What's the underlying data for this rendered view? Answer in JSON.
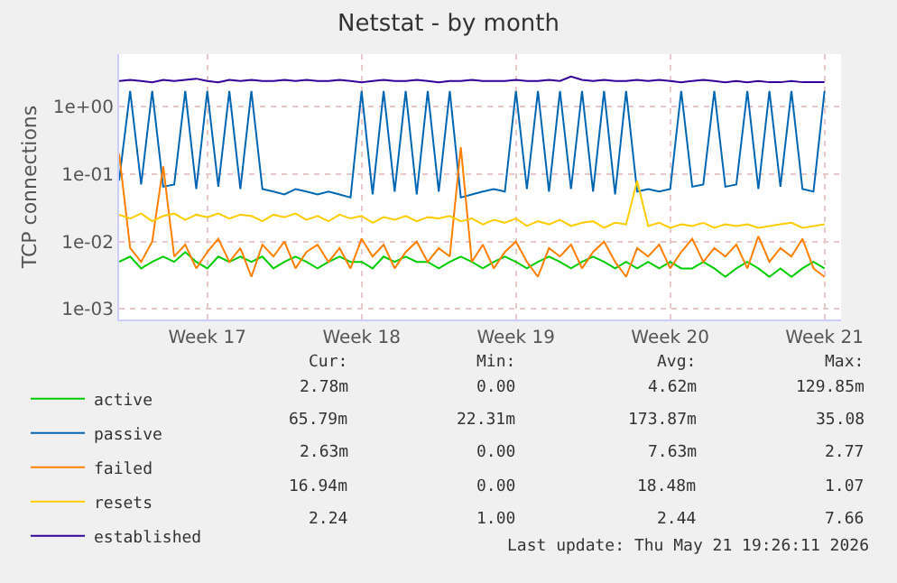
{
  "chart_data": {
    "type": "line",
    "title": "Netstat - by month",
    "ylabel": "TCP connections",
    "x": [
      "2026-04-19T12:00",
      "2026-04-20T00:00",
      "2026-04-20T12:00",
      "2026-04-21T00:00",
      "2026-04-21T12:00",
      "2026-04-22T00:00",
      "2026-04-22T12:00",
      "2026-04-23T00:00",
      "2026-04-23T12:00",
      "2026-04-24T00:00",
      "2026-04-24T12:00",
      "2026-04-25T00:00",
      "2026-04-25T12:00",
      "2026-04-26T00:00",
      "2026-04-26T12:00",
      "2026-04-27T00:00",
      "2026-04-27T12:00",
      "2026-04-28T00:00",
      "2026-04-28T12:00",
      "2026-04-29T00:00",
      "2026-04-29T12:00",
      "2026-04-30T00:00",
      "2026-04-30T12:00",
      "2026-05-01T00:00",
      "2026-05-01T12:00",
      "2026-05-02T00:00",
      "2026-05-02T12:00",
      "2026-05-03T00:00",
      "2026-05-03T12:00",
      "2026-05-04T00:00",
      "2026-05-04T12:00",
      "2026-05-05T00:00",
      "2026-05-05T12:00",
      "2026-05-06T00:00",
      "2026-05-06T12:00",
      "2026-05-07T00:00",
      "2026-05-07T12:00",
      "2026-05-08T00:00",
      "2026-05-08T12:00",
      "2026-05-09T00:00",
      "2026-05-09T12:00",
      "2026-05-10T00:00",
      "2026-05-10T12:00",
      "2026-05-11T00:00",
      "2026-05-11T12:00",
      "2026-05-12T00:00",
      "2026-05-12T12:00",
      "2026-05-13T00:00",
      "2026-05-13T12:00",
      "2026-05-14T00:00",
      "2026-05-14T12:00",
      "2026-05-15T00:00",
      "2026-05-15T12:00",
      "2026-05-16T00:00",
      "2026-05-16T12:00",
      "2026-05-17T00:00",
      "2026-05-17T12:00",
      "2026-05-18T00:00",
      "2026-05-18T12:00",
      "2026-05-19T00:00",
      "2026-05-19T12:00",
      "2026-05-20T00:00",
      "2026-05-20T12:00",
      "2026-05-21T00:00",
      "2026-05-21T12:00"
    ],
    "series": [
      {
        "name": "active",
        "color": "#00cc00",
        "values": [
          0.005,
          0.006,
          0.004,
          0.005,
          0.006,
          0.005,
          0.007,
          0.005,
          0.004,
          0.006,
          0.005,
          0.006,
          0.005,
          0.006,
          0.004,
          0.005,
          0.006,
          0.005,
          0.004,
          0.005,
          0.006,
          0.005,
          0.005,
          0.004,
          0.006,
          0.005,
          0.006,
          0.005,
          0.005,
          0.004,
          0.005,
          0.006,
          0.005,
          0.004,
          0.005,
          0.006,
          0.005,
          0.004,
          0.005,
          0.006,
          0.005,
          0.004,
          0.005,
          0.006,
          0.005,
          0.004,
          0.005,
          0.004,
          0.005,
          0.004,
          0.005,
          0.004,
          0.004,
          0.005,
          0.004,
          0.003,
          0.004,
          0.005,
          0.004,
          0.003,
          0.004,
          0.003,
          0.004,
          0.005,
          0.004
        ]
      },
      {
        "name": "passive",
        "color": "#0066b3",
        "values": [
          0.08,
          1.7,
          0.07,
          1.7,
          0.065,
          0.07,
          1.7,
          0.06,
          1.7,
          0.065,
          1.7,
          0.06,
          1.7,
          0.06,
          0.055,
          0.05,
          0.06,
          0.055,
          0.05,
          0.055,
          0.05,
          0.045,
          1.7,
          0.05,
          1.7,
          0.055,
          1.7,
          0.05,
          1.7,
          0.055,
          1.7,
          0.045,
          0.05,
          0.055,
          0.06,
          0.055,
          1.7,
          0.06,
          1.7,
          0.055,
          1.7,
          0.06,
          1.7,
          0.055,
          1.7,
          0.05,
          1.7,
          0.055,
          0.06,
          0.055,
          0.06,
          1.7,
          0.065,
          0.07,
          1.7,
          0.065,
          0.07,
          1.7,
          0.06,
          1.7,
          0.065,
          1.7,
          0.06,
          0.055,
          1.7
        ]
      },
      {
        "name": "failed",
        "color": "#ff8000",
        "values": [
          0.2,
          0.008,
          0.005,
          0.01,
          0.13,
          0.006,
          0.009,
          0.004,
          0.007,
          0.011,
          0.005,
          0.008,
          0.003,
          0.009,
          0.006,
          0.01,
          0.004,
          0.007,
          0.009,
          0.005,
          0.008,
          0.004,
          0.011,
          0.006,
          0.009,
          0.004,
          0.007,
          0.01,
          0.005,
          0.008,
          0.006,
          0.25,
          0.005,
          0.009,
          0.004,
          0.007,
          0.01,
          0.005,
          0.003,
          0.008,
          0.006,
          0.009,
          0.004,
          0.007,
          0.01,
          0.005,
          0.003,
          0.008,
          0.006,
          0.009,
          0.004,
          0.007,
          0.011,
          0.005,
          0.008,
          0.006,
          0.009,
          0.004,
          0.012,
          0.005,
          0.008,
          0.006,
          0.011,
          0.004,
          0.003
        ]
      },
      {
        "name": "resets",
        "color": "#ffcc00",
        "values": [
          0.025,
          0.022,
          0.026,
          0.02,
          0.024,
          0.026,
          0.021,
          0.025,
          0.023,
          0.026,
          0.022,
          0.025,
          0.024,
          0.02,
          0.025,
          0.023,
          0.026,
          0.021,
          0.024,
          0.02,
          0.025,
          0.022,
          0.024,
          0.019,
          0.023,
          0.021,
          0.024,
          0.02,
          0.023,
          0.022,
          0.024,
          0.02,
          0.022,
          0.018,
          0.021,
          0.019,
          0.022,
          0.017,
          0.02,
          0.018,
          0.021,
          0.017,
          0.019,
          0.02,
          0.016,
          0.019,
          0.018,
          0.08,
          0.017,
          0.019,
          0.016,
          0.018,
          0.017,
          0.019,
          0.016,
          0.018,
          0.017,
          0.018,
          0.016,
          0.017,
          0.018,
          0.019,
          0.016,
          0.017,
          0.018
        ]
      },
      {
        "name": "established",
        "color": "#330099",
        "values": [
          2.4,
          2.5,
          2.4,
          2.3,
          2.5,
          2.4,
          2.5,
          2.6,
          2.4,
          2.3,
          2.5,
          2.4,
          2.5,
          2.4,
          2.4,
          2.5,
          2.4,
          2.5,
          2.4,
          2.4,
          2.5,
          2.4,
          2.3,
          2.4,
          2.5,
          2.4,
          2.4,
          2.5,
          2.4,
          2.3,
          2.4,
          2.4,
          2.5,
          2.4,
          2.4,
          2.4,
          2.5,
          2.4,
          2.4,
          2.5,
          2.4,
          2.8,
          2.5,
          2.4,
          2.5,
          2.4,
          2.4,
          2.5,
          2.4,
          2.5,
          2.4,
          2.3,
          2.4,
          2.5,
          2.4,
          2.3,
          2.4,
          2.3,
          2.4,
          2.3,
          2.3,
          2.4,
          2.3,
          2.3,
          2.3
        ]
      }
    ],
    "xlim": [
      "2026-04-19T12:00",
      "2026-05-22T06:00"
    ],
    "xticks": [
      {
        "value": "2026-04-23T12:00",
        "label": "Week 17"
      },
      {
        "value": "2026-04-30T12:00",
        "label": "Week 18"
      },
      {
        "value": "2026-05-07T12:00",
        "label": "Week 19"
      },
      {
        "value": "2026-05-14T12:00",
        "label": "Week 20"
      },
      {
        "value": "2026-05-21T12:00",
        "label": "Week 21"
      }
    ],
    "ylim": [
      0.0007,
      6
    ],
    "yticks": [
      {
        "value": 0.001,
        "label": "1e-03"
      },
      {
        "value": 0.01,
        "label": "1e-02"
      },
      {
        "value": 0.1,
        "label": "1e-01"
      },
      {
        "value": 1,
        "label": "1e+00"
      }
    ],
    "log": true,
    "grid": true,
    "legend": "bottom left",
    "annotations": [
      "Cur:",
      "Min:",
      "Avg:",
      "Max:",
      "2.78m",
      "0.00",
      "4.62m",
      "129.85m",
      "65.79m",
      "22.31m",
      "173.87m",
      "35.08",
      "2.63m",
      "0.00",
      "7.63m",
      "2.77",
      "16.94m",
      "0.00",
      "18.48m",
      "1.07",
      "2.24",
      "1.00",
      "2.44",
      "7.66",
      "Last update: Thu May 21 19:26:11 2026"
    ]
  }
}
